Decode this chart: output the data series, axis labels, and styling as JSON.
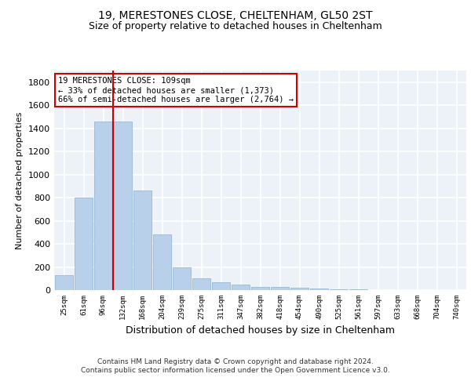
{
  "title1": "19, MERESTONES CLOSE, CHELTENHAM, GL50 2ST",
  "title2": "Size of property relative to detached houses in Cheltenham",
  "xlabel": "Distribution of detached houses by size in Cheltenham",
  "ylabel": "Number of detached properties",
  "categories": [
    "25sqm",
    "61sqm",
    "96sqm",
    "132sqm",
    "168sqm",
    "204sqm",
    "239sqm",
    "275sqm",
    "311sqm",
    "347sqm",
    "382sqm",
    "418sqm",
    "454sqm",
    "490sqm",
    "525sqm",
    "561sqm",
    "597sqm",
    "633sqm",
    "668sqm",
    "704sqm",
    "740sqm"
  ],
  "values": [
    130,
    800,
    1460,
    1460,
    860,
    480,
    200,
    105,
    65,
    45,
    30,
    25,
    20,
    12,
    8,
    5,
    3,
    2,
    1,
    1,
    1
  ],
  "bar_color": "#b8d0ea",
  "bar_edge_color": "#8ab0d0",
  "vline_x": 2.5,
  "vline_color": "#cc0000",
  "annotation_text": "19 MERESTONES CLOSE: 109sqm\n← 33% of detached houses are smaller (1,373)\n66% of semi-detached houses are larger (2,764) →",
  "annotation_box_facecolor": "#ffffff",
  "annotation_box_edge": "#cc0000",
  "ylim": [
    0,
    1900
  ],
  "yticks": [
    0,
    200,
    400,
    600,
    800,
    1000,
    1200,
    1400,
    1600,
    1800
  ],
  "footer": "Contains HM Land Registry data © Crown copyright and database right 2024.\nContains public sector information licensed under the Open Government Licence v3.0.",
  "bg_color": "#edf1f8",
  "grid_color": "#ffffff",
  "title1_fontsize": 10,
  "title2_fontsize": 9
}
